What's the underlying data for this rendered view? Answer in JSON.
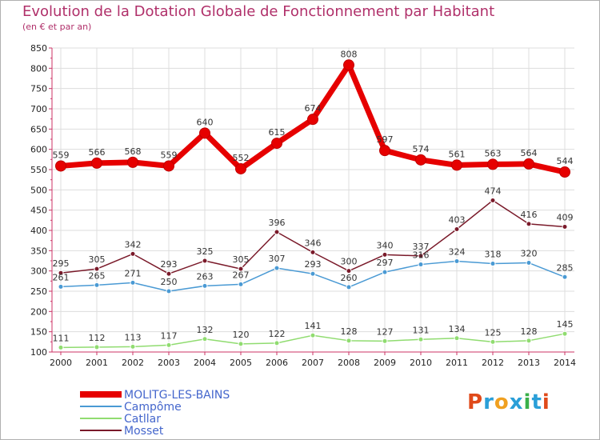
{
  "title": "Evolution de la Dotation Globale de Fonctionnement par Habitant",
  "subtitle": "(en € et par an)",
  "logo": {
    "text": "Proxiti",
    "colors": [
      "#e04a1a",
      "#2a9fd8",
      "#f0a020",
      "#2a9fd8",
      "#3ab04a",
      "#2a9fd8",
      "#e04a1a"
    ]
  },
  "chart_data": {
    "type": "line",
    "title": "Evolution de la Dotation Globale de Fonctionnement par Habitant",
    "ylabel": "(en € et par an)",
    "xlabel": "",
    "ylim": [
      100,
      850
    ],
    "yticks": [
      100,
      150,
      200,
      250,
      300,
      350,
      400,
      450,
      500,
      550,
      600,
      650,
      700,
      750,
      800,
      850
    ],
    "x": [
      "2000",
      "2001",
      "2002",
      "2003",
      "2004",
      "2005",
      "2006",
      "2007",
      "2008",
      "2009",
      "2010",
      "2011",
      "2012",
      "2013",
      "2014"
    ],
    "legend_position": "bottom-left",
    "series": [
      {
        "name": "MOLITG-LES-BAINS",
        "color": "#e60000",
        "labelColor": "#333333",
        "bold": true,
        "values": [
          559,
          566,
          568,
          559,
          640,
          552,
          615,
          674,
          808,
          597,
          574,
          561,
          563,
          564,
          544
        ]
      },
      {
        "name": "Campôme",
        "color": "#4a9ad4",
        "labelColor": "#333333",
        "bold": false,
        "values": [
          261,
          265,
          271,
          250,
          263,
          267,
          307,
          293,
          260,
          297,
          316,
          324,
          318,
          320,
          285
        ]
      },
      {
        "name": "Catllar",
        "color": "#90dc70",
        "labelColor": "#333333",
        "bold": false,
        "values": [
          111,
          112,
          113,
          117,
          132,
          120,
          122,
          141,
          128,
          127,
          131,
          134,
          125,
          128,
          145
        ]
      },
      {
        "name": "Mosset",
        "color": "#7a1a2a",
        "labelColor": "#333333",
        "bold": false,
        "values": [
          295,
          305,
          342,
          293,
          325,
          305,
          396,
          346,
          300,
          340,
          337,
          403,
          474,
          416,
          409
        ]
      }
    ]
  }
}
